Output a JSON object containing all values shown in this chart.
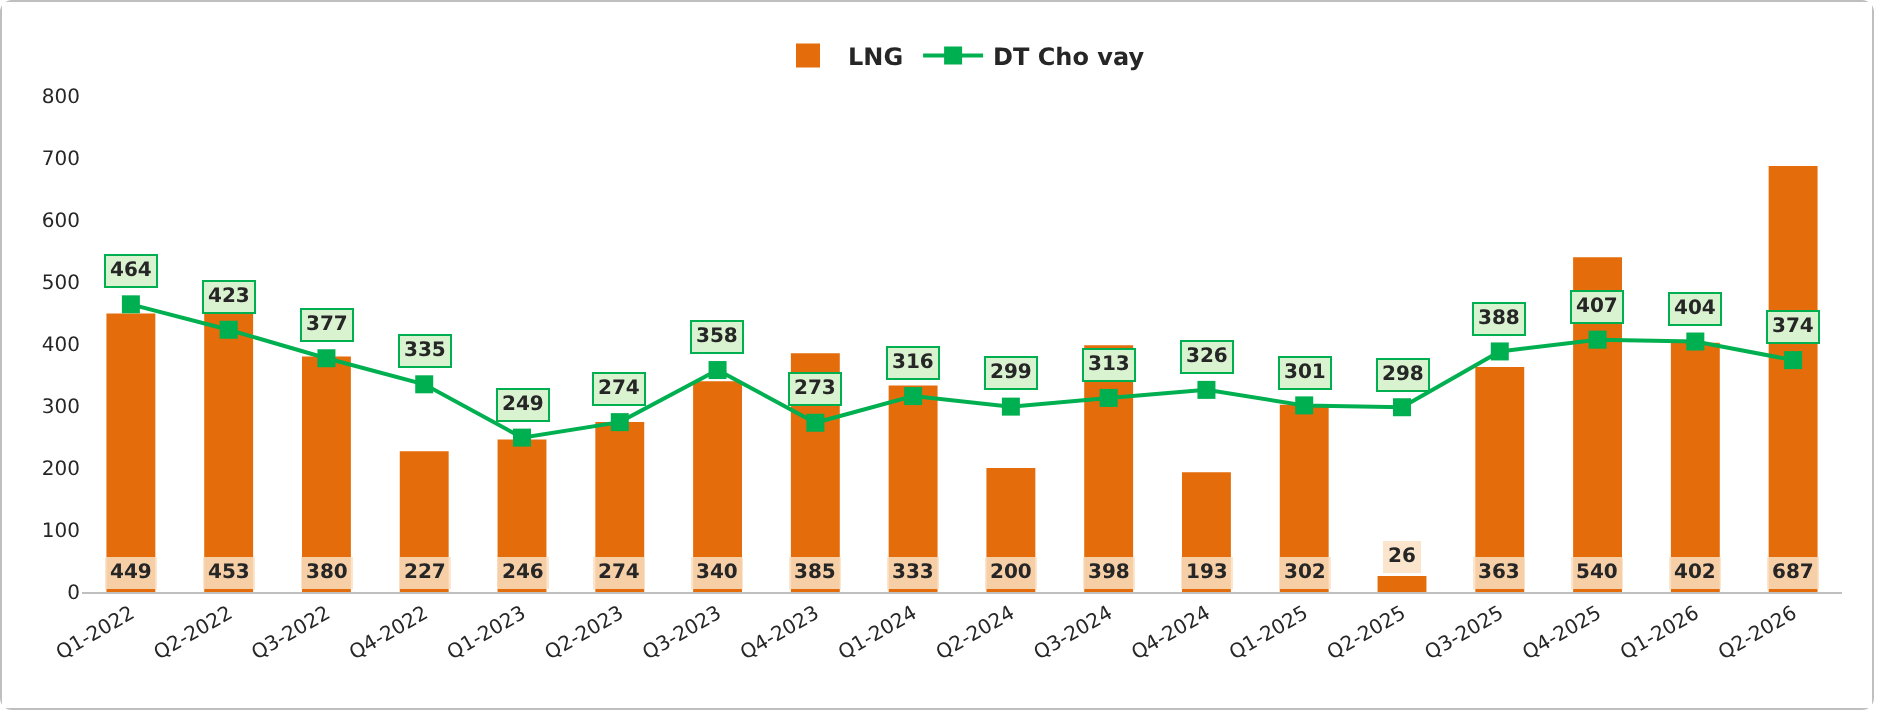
{
  "chart_data": {
    "type": "bar",
    "categories": [
      "Q1-2022",
      "Q2-2022",
      "Q3-2022",
      "Q4-2022",
      "Q1-2023",
      "Q2-2023",
      "Q3-2023",
      "Q4-2023",
      "Q1-2024",
      "Q2-2024",
      "Q3-2024",
      "Q4-2024",
      "Q1-2025",
      "Q2-2025",
      "Q3-2025",
      "Q4-2025",
      "Q1-2026",
      "Q2-2026"
    ],
    "series": [
      {
        "name": "LNG",
        "color": "#e46c0a",
        "values": [
          449,
          453,
          380,
          227,
          246,
          274,
          340,
          385,
          333,
          200,
          398,
          193,
          302,
          26,
          363,
          540,
          402,
          687
        ]
      },
      {
        "name": "DT Cho vay",
        "type": "line",
        "color": "#00b050",
        "marker": "square",
        "values": [
          464,
          423,
          377,
          335,
          249,
          274,
          358,
          273,
          316,
          299,
          313,
          326,
          301,
          298,
          388,
          407,
          404,
          374
        ]
      }
    ],
    "ylim": [
      0,
      800
    ],
    "yticks": [
      0,
      100,
      200,
      300,
      400,
      500,
      600,
      700,
      800
    ],
    "grid": false,
    "legend": "top",
    "data_labels": true
  }
}
